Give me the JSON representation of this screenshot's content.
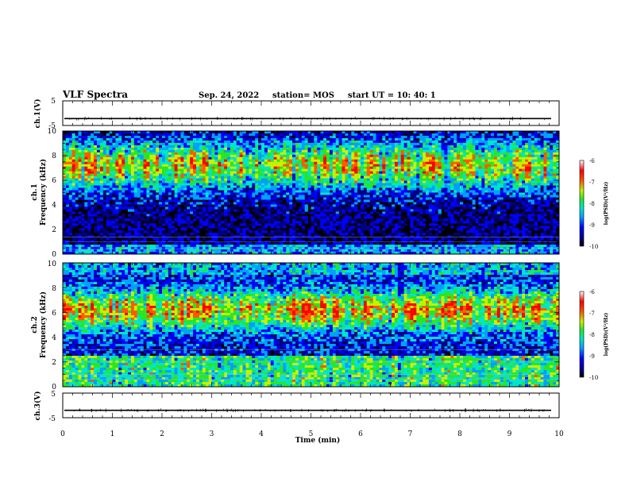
{
  "header": {
    "title": "VLF Spectra",
    "date": "Sep. 24, 2022",
    "station": "station= MOS",
    "start_ut": "start  UT  =   10: 40: 1"
  },
  "chart_data": [
    {
      "type": "line",
      "panel": "ch1-waveform",
      "ylabel": "ch.1(V)",
      "ylim": [
        -5,
        5
      ],
      "yticks": [
        "5",
        "-5"
      ],
      "level": -2.2
    },
    {
      "type": "heatmap",
      "panel": "ch1-spectrogram",
      "ylabel_top": "ch.1",
      "ylabel": "Frequency  (kHz)",
      "ylim": [
        0,
        10
      ],
      "yticks": [
        "0",
        "2",
        "4",
        "6",
        "8",
        "10"
      ],
      "xlim": [
        0,
        10
      ],
      "band_center_khz": 6.5,
      "colorbar": {
        "label": "log(PSD)(V²/Hz)",
        "ticks": [
          "-6",
          "-7",
          "-8",
          "-9",
          "-10"
        ],
        "range": [
          -10,
          -6
        ]
      }
    },
    {
      "type": "heatmap",
      "panel": "ch2-spectrogram",
      "ylabel_top": "ch.2",
      "ylabel": "Frequency  (kHz)",
      "ylim": [
        0,
        10
      ],
      "yticks": [
        "0",
        "2",
        "4",
        "6",
        "8",
        "10"
      ],
      "xlim": [
        0,
        10
      ],
      "band_center_khz": 6.5,
      "colorbar": {
        "label": "log(PSD)(V²/Hz)",
        "ticks": [
          "-6",
          "-7",
          "-8",
          "-9",
          "-10"
        ],
        "range": [
          -10,
          -6
        ]
      }
    },
    {
      "type": "line",
      "panel": "ch3-waveform",
      "ylabel": "ch.3(V)",
      "ylim": [
        -5,
        5
      ],
      "yticks": [
        "5",
        "-5"
      ],
      "level": -2.0,
      "xlabel": "Time  (min)",
      "xlim": [
        0,
        10
      ],
      "xticks": [
        "0",
        "1",
        "2",
        "3",
        "4",
        "5",
        "6",
        "7",
        "8",
        "9",
        "10"
      ]
    }
  ],
  "colors": {
    "colormap": [
      "#000000",
      "#000080",
      "#0000ff",
      "#00a0ff",
      "#00e6c8",
      "#28e628",
      "#c8f000",
      "#ff5a00",
      "#ff0000",
      "#ffffff"
    ]
  }
}
